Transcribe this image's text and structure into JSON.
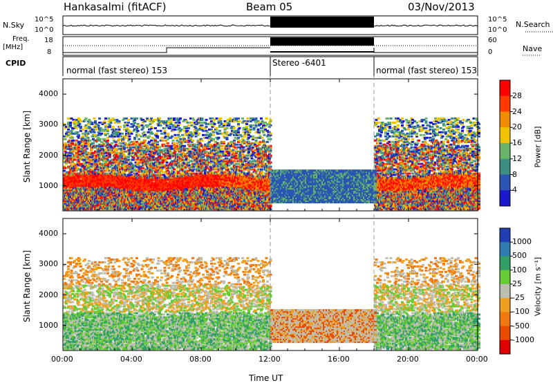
{
  "header": {
    "station": "Hankasalmi (fitACF)",
    "beam": "Beam 05",
    "date": "03/Nov/2013"
  },
  "left_labels": {
    "nsky": "N.Sky",
    "freq_top": "Freq.",
    "freq_unit": "[MHz]",
    "cpid": "CPID"
  },
  "right_labels": {
    "nsearch": "N.Search",
    "nave": "Nave"
  },
  "mini_axes": {
    "nsky_ticks": [
      "10^5",
      "10^0"
    ],
    "freq_ticks": [
      "18",
      "8"
    ],
    "nsearch_ticks": [
      "10^5",
      "10^0"
    ],
    "nave_ticks": [
      "60",
      "0"
    ]
  },
  "cpid_segments": [
    {
      "label": "normal (fast stereo) 153",
      "start": 0,
      "end": 12
    },
    {
      "label": "Stereo -6401",
      "start": 12,
      "end": 18
    },
    {
      "label": "normal (fast stereo) 153",
      "start": 18,
      "end": 24
    }
  ],
  "chart_data": [
    {
      "type": "heatmap",
      "panel": "power",
      "ylabel": "Slant Range [km]",
      "ylim": [
        180,
        4500
      ],
      "yticks": [
        "1000",
        "2000",
        "3000",
        "4000"
      ],
      "colorbar_label": "Power [dB]",
      "colorbar_ticks": [
        "4",
        "8",
        "12",
        "16",
        "20",
        "24",
        "28"
      ],
      "colors": [
        "#1a1acc",
        "#2a55b5",
        "#3d8f83",
        "#6cb36a",
        "#f2c200",
        "#f08c00",
        "#ff3b00",
        "#ff0000"
      ]
    },
    {
      "type": "heatmap",
      "panel": "velocity",
      "ylabel": "Slant Range [km]",
      "ylim": [
        180,
        4500
      ],
      "yticks": [
        "1000",
        "2000",
        "3000",
        "4000"
      ],
      "colorbar_label": "Velocity [m s⁻¹]",
      "colorbar_ticks": [
        "1000",
        "500",
        "100",
        "25",
        "-25",
        "-100",
        "-500",
        "-1000"
      ],
      "colors": [
        "#1f3fb3",
        "#2f7db0",
        "#2f9f66",
        "#66cc33",
        "#bdbdb0",
        "#f0a020",
        "#f07a10",
        "#e84a00",
        "#e00000"
      ]
    }
  ],
  "x_axis": {
    "ticks": [
      "00:00",
      "04:00",
      "08:00",
      "12:00",
      "16:00",
      "20:00",
      "00:00"
    ],
    "label": "Time UT",
    "range_hours": [
      0,
      24
    ]
  }
}
